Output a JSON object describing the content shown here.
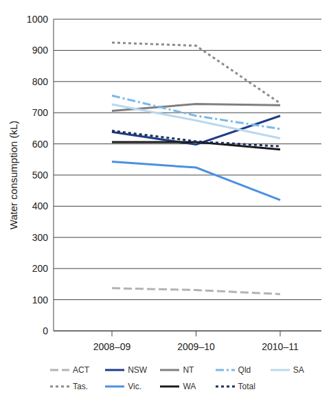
{
  "chart_data": {
    "type": "line",
    "y_label": "Water consumption (kL)",
    "categories": [
      "2008–09",
      "2009–10",
      "2010–11"
    ],
    "series": [
      {
        "name": "ACT",
        "color": "#b3b3b3",
        "line_style": "dashed",
        "values": [
          137,
          131,
          118
        ]
      },
      {
        "name": "NSW",
        "color": "#1f3c88",
        "line_style": "solid",
        "values": [
          638,
          598,
          690
        ]
      },
      {
        "name": "NT",
        "color": "#7f7f7f",
        "line_style": "solid",
        "values": [
          706,
          728,
          724
        ]
      },
      {
        "name": "Qld",
        "color": "#7ab8e8",
        "line_style": "dash-dot",
        "values": [
          755,
          690,
          648
        ]
      },
      {
        "name": "SA",
        "color": "#b8d8ef",
        "line_style": "solid",
        "values": [
          727,
          675,
          618
        ]
      },
      {
        "name": "Tas.",
        "color": "#8c8c8c",
        "line_style": "dotted",
        "values": [
          925,
          915,
          730
        ]
      },
      {
        "name": "Vic.",
        "color": "#4a90e2",
        "line_style": "solid",
        "values": [
          543,
          524,
          420
        ]
      },
      {
        "name": "WA",
        "color": "#1a1a1a",
        "line_style": "solid",
        "values": [
          606,
          606,
          582
        ]
      },
      {
        "name": "Total",
        "color": "#1c2f5a",
        "line_style": "dotted",
        "values": [
          642,
          608,
          592
        ]
      }
    ],
    "ylim": [
      0,
      1000
    ],
    "yticks": [
      0,
      100,
      200,
      300,
      400,
      500,
      600,
      700,
      800,
      900,
      1000
    ],
    "grid": true,
    "legend": "bottom"
  }
}
